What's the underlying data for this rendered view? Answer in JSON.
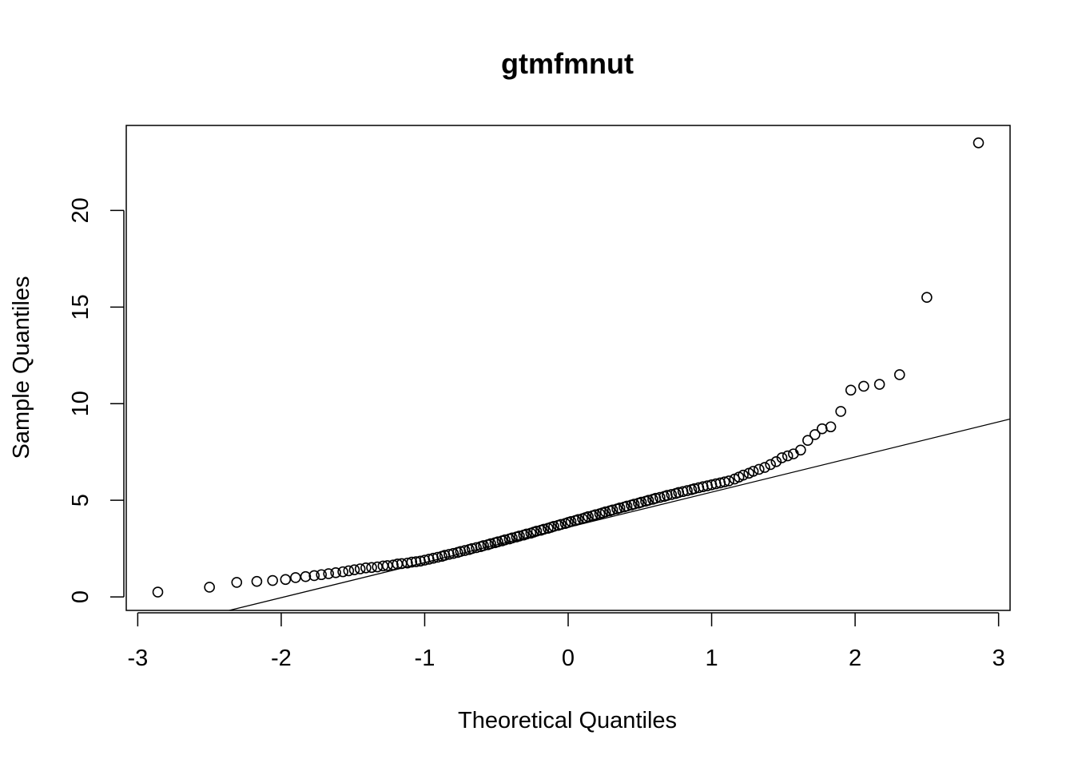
{
  "chart_data": {
    "type": "scatter",
    "subtype": "qq-normal",
    "title": "gtmfmnut",
    "xlabel": "Theoretical Quantiles",
    "ylabel": "Sample Quantiles",
    "xlim": [
      -3.08,
      3.08
    ],
    "ylim": [
      -0.7,
      24.4
    ],
    "xticks": [
      -3,
      -2,
      -1,
      0,
      1,
      2,
      3
    ],
    "xtick_labels": [
      "-3",
      "-2",
      "-1",
      "0",
      "1",
      "2",
      "3"
    ],
    "yticks": [
      0,
      5,
      10,
      15,
      20
    ],
    "ytick_labels": [
      "0",
      "5",
      "10",
      "15",
      "20"
    ],
    "grid": false,
    "legend": "none",
    "reference_line": {
      "intercept": 3.6,
      "slope": 1.82
    },
    "marker": "open-circle",
    "colors": {
      "points": "#000000",
      "line": "#000000",
      "axes": "#000000",
      "background": "#ffffff"
    },
    "points": {
      "x": [
        -2.86,
        -2.5,
        -2.31,
        -2.17,
        -2.06,
        -1.97,
        -1.9,
        -1.83,
        -1.77,
        -1.72,
        -1.67,
        -1.62,
        -1.57,
        -1.53,
        -1.49,
        -1.45,
        -1.41,
        -1.37,
        -1.33,
        -1.29,
        -1.26,
        -1.22,
        -1.19,
        -1.16,
        -1.12,
        -1.09,
        -1.06,
        -1.03,
        -1.0,
        -0.97,
        -0.94,
        -0.91,
        -0.88,
        -0.86,
        -0.83,
        -0.8,
        -0.77,
        -0.75,
        -0.72,
        -0.69,
        -0.67,
        -0.64,
        -0.61,
        -0.59,
        -0.56,
        -0.54,
        -0.51,
        -0.49,
        -0.46,
        -0.44,
        -0.41,
        -0.39,
        -0.36,
        -0.34,
        -0.31,
        -0.29,
        -0.26,
        -0.24,
        -0.22,
        -0.19,
        -0.17,
        -0.14,
        -0.12,
        -0.1,
        -0.07,
        -0.05,
        -0.02,
        0.0,
        0.02,
        0.05,
        0.07,
        0.1,
        0.12,
        0.14,
        0.17,
        0.19,
        0.22,
        0.24,
        0.26,
        0.29,
        0.31,
        0.34,
        0.36,
        0.39,
        0.41,
        0.44,
        0.46,
        0.49,
        0.51,
        0.54,
        0.56,
        0.59,
        0.61,
        0.64,
        0.67,
        0.69,
        0.72,
        0.75,
        0.77,
        0.8,
        0.83,
        0.86,
        0.88,
        0.91,
        0.94,
        0.97,
        1.0,
        1.03,
        1.06,
        1.09,
        1.12,
        1.16,
        1.19,
        1.22,
        1.26,
        1.29,
        1.33,
        1.37,
        1.41,
        1.45,
        1.49,
        1.53,
        1.57,
        1.62,
        1.67,
        1.72,
        1.77,
        1.83,
        1.9,
        1.97,
        2.06,
        2.17,
        2.31,
        2.5,
        2.86
      ],
      "y": [
        0.25,
        0.5,
        0.75,
        0.8,
        0.85,
        0.9,
        1.0,
        1.05,
        1.1,
        1.15,
        1.2,
        1.25,
        1.3,
        1.35,
        1.4,
        1.45,
        1.5,
        1.52,
        1.55,
        1.6,
        1.62,
        1.65,
        1.7,
        1.72,
        1.75,
        1.8,
        1.82,
        1.85,
        1.9,
        1.95,
        2.0,
        2.05,
        2.1,
        2.15,
        2.2,
        2.25,
        2.3,
        2.35,
        2.4,
        2.45,
        2.5,
        2.55,
        2.6,
        2.65,
        2.7,
        2.75,
        2.8,
        2.85,
        2.9,
        2.95,
        3.0,
        3.05,
        3.1,
        3.15,
        3.2,
        3.25,
        3.3,
        3.35,
        3.4,
        3.45,
        3.5,
        3.55,
        3.6,
        3.65,
        3.7,
        3.75,
        3.8,
        3.85,
        3.9,
        3.95,
        4.0,
        4.05,
        4.1,
        4.15,
        4.2,
        4.25,
        4.3,
        4.35,
        4.4,
        4.45,
        4.5,
        4.55,
        4.6,
        4.65,
        4.7,
        4.75,
        4.8,
        4.85,
        4.9,
        4.95,
        5.0,
        5.05,
        5.1,
        5.15,
        5.2,
        5.25,
        5.3,
        5.35,
        5.4,
        5.45,
        5.5,
        5.55,
        5.6,
        5.65,
        5.7,
        5.75,
        5.8,
        5.85,
        5.9,
        5.95,
        6.0,
        6.1,
        6.2,
        6.3,
        6.4,
        6.5,
        6.6,
        6.7,
        6.85,
        7.0,
        7.2,
        7.3,
        7.4,
        7.6,
        8.1,
        8.4,
        8.7,
        8.8,
        9.6,
        10.7,
        10.9,
        11.0,
        11.5,
        15.5,
        23.5
      ]
    }
  }
}
